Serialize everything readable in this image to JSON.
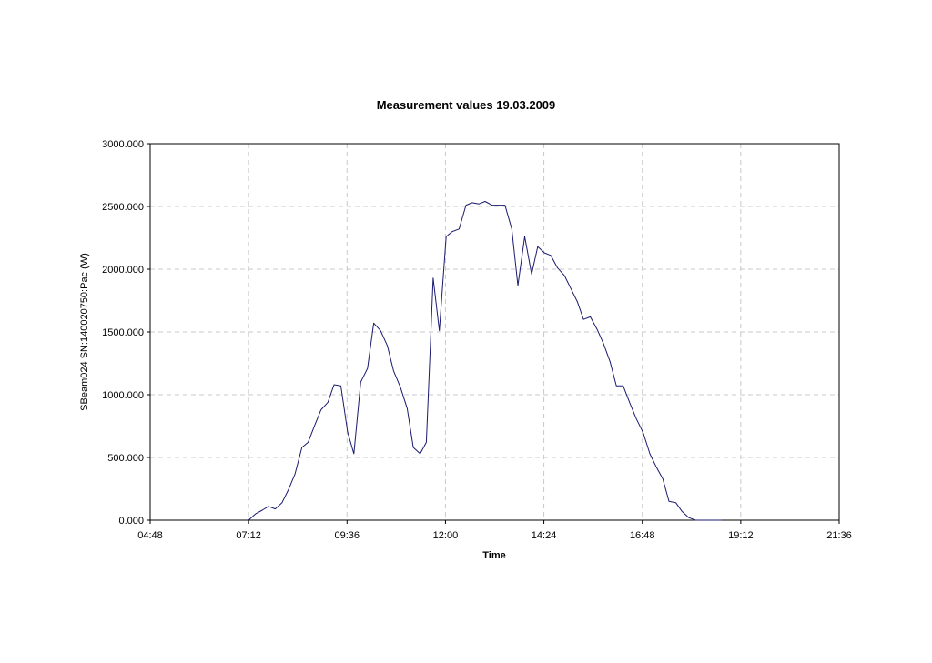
{
  "chart_data": {
    "type": "line",
    "title": "Measurement values 19.03.2009",
    "xlabel": "Time",
    "ylabel": "SBeam024 SN:140020750:Pac (W)",
    "xlim": [
      "04:48",
      "21:36"
    ],
    "ylim": [
      0,
      3000
    ],
    "x_ticks": [
      "04:48",
      "07:12",
      "09:36",
      "12:00",
      "14:24",
      "16:48",
      "19:12",
      "21:36"
    ],
    "y_ticks": [
      "0.000",
      "500.000",
      "1000.000",
      "1500.000",
      "2000.000",
      "2500.000",
      "3000.000"
    ],
    "grid": true,
    "colors": {
      "line": "#1a1a6e",
      "grid": "#c8c8c8",
      "axis": "#000000"
    },
    "series": [
      {
        "x": [
          "07:12",
          "07:22",
          "07:32",
          "07:41",
          "07:51",
          "08:01",
          "08:10",
          "08:20",
          "08:30",
          "08:39",
          "08:49",
          "08:58",
          "09:08",
          "09:17",
          "09:27",
          "09:37",
          "09:46",
          "09:56",
          "10:06",
          "10:15",
          "10:25",
          "10:35",
          "10:44",
          "10:54",
          "11:04",
          "11:13",
          "11:23",
          "11:32",
          "11:42",
          "11:51",
          "12:01",
          "12:10",
          "12:20",
          "12:30",
          "12:39",
          "12:49",
          "12:58",
          "13:08",
          "13:18",
          "13:27",
          "13:37",
          "13:46",
          "13:56",
          "14:06",
          "14:15",
          "14:25",
          "14:34",
          "14:44",
          "14:54",
          "15:03",
          "15:13",
          "15:22",
          "15:32",
          "15:42",
          "15:51",
          "16:01",
          "16:10",
          "16:20",
          "16:30",
          "16:39",
          "16:49",
          "16:59",
          "17:08",
          "17:18",
          "17:27",
          "17:37",
          "17:46",
          "17:56",
          "18:06",
          "18:15",
          "18:25",
          "18:35",
          "18:44"
        ],
        "values": [
          0,
          50,
          80,
          110,
          90,
          140,
          240,
          370,
          580,
          620,
          760,
          880,
          940,
          1080,
          1070,
          700,
          530,
          1100,
          1210,
          1570,
          1510,
          1390,
          1190,
          1060,
          890,
          580,
          530,
          620,
          1930,
          1510,
          2260,
          2300,
          2320,
          2510,
          2530,
          2520,
          2540,
          2510,
          2510,
          2510,
          2320,
          1870,
          2260,
          1960,
          2180,
          2130,
          2110,
          2010,
          1950,
          1850,
          1740,
          1600,
          1620,
          1520,
          1410,
          1260,
          1070,
          1070,
          930,
          810,
          700,
          530,
          430,
          330,
          150,
          140,
          70,
          20,
          0,
          0,
          0,
          0,
          0
        ]
      }
    ]
  }
}
